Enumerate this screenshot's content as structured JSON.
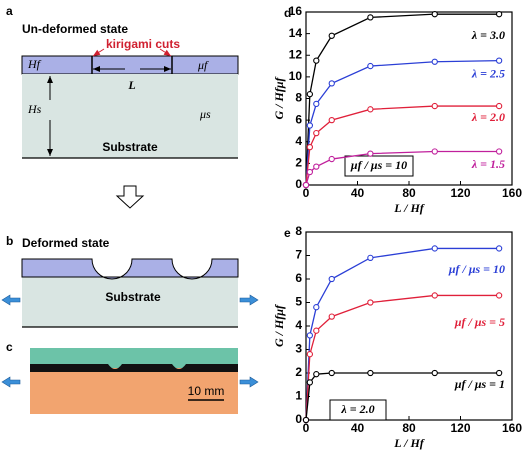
{
  "diagrams": {
    "a": {
      "label": "a",
      "title": "Un-deformed state",
      "cuts": "kirigami cuts",
      "film_thickness": "Hf",
      "film_modulus": "μf",
      "length": "L",
      "substrate_thickness": "Hs",
      "substrate_modulus": "μs",
      "substrate": "Substrate"
    },
    "b": {
      "label": "b",
      "title": "Deformed state",
      "substrate": "Substrate"
    },
    "c": {
      "label": "c",
      "scale": "10 mm"
    }
  },
  "chart_data": [
    {
      "type": "line",
      "panel": "d",
      "xlabel": "L / Hf",
      "ylabel": "G / Hfμf",
      "annotation": "μf / μs = 10",
      "x": [
        0,
        3,
        8,
        20,
        50,
        100,
        150
      ],
      "xlim": [
        0,
        160
      ],
      "xticks": [
        0,
        40,
        80,
        120,
        160
      ],
      "ylim": [
        0,
        16
      ],
      "yticks": [
        0,
        2,
        4,
        6,
        8,
        10,
        12,
        14,
        16
      ],
      "series": [
        {
          "name": "λ = 3.0",
          "color": "#000000",
          "values": [
            0,
            8.4,
            11.5,
            13.8,
            15.5,
            15.8,
            15.8
          ]
        },
        {
          "name": "λ = 2.5",
          "color": "#2b3fd6",
          "values": [
            0,
            5.5,
            7.5,
            9.4,
            11,
            11.4,
            11.5
          ]
        },
        {
          "name": "λ = 2.0",
          "color": "#e0203a",
          "values": [
            0,
            3.5,
            4.8,
            6,
            7,
            7.3,
            7.3
          ]
        },
        {
          "name": "λ = 1.5",
          "color": "#c0209c",
          "values": [
            0,
            1.2,
            1.7,
            2.4,
            2.9,
            3.1,
            3.1
          ]
        }
      ]
    },
    {
      "type": "line",
      "panel": "e",
      "xlabel": "L / Hf",
      "ylabel": "G / Hfμf",
      "annotation": "λ = 2.0",
      "x": [
        0,
        3,
        8,
        20,
        50,
        100,
        150
      ],
      "xlim": [
        0,
        160
      ],
      "xticks": [
        0,
        40,
        80,
        120,
        160
      ],
      "ylim": [
        0,
        8
      ],
      "yticks": [
        0,
        1,
        2,
        3,
        4,
        5,
        6,
        7,
        8
      ],
      "series": [
        {
          "name": "μf / μs = 10",
          "color": "#2b3fd6",
          "values": [
            0,
            3.6,
            4.8,
            6,
            6.9,
            7.3,
            7.3
          ]
        },
        {
          "name": "μf / μs = 5",
          "color": "#e0203a",
          "values": [
            0,
            2.8,
            3.8,
            4.4,
            5,
            5.3,
            5.3
          ]
        },
        {
          "name": "μf / μs = 1",
          "color": "#000000",
          "values": [
            0,
            1.6,
            1.95,
            2,
            2,
            2,
            2
          ]
        }
      ]
    }
  ]
}
